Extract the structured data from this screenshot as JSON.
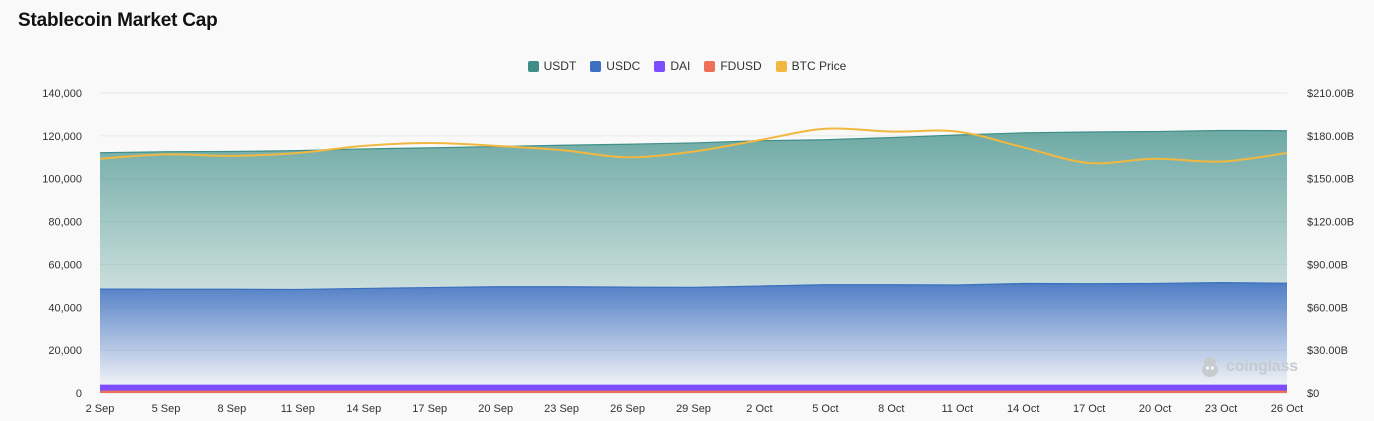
{
  "header": {
    "title": "Stablecoin Market Cap"
  },
  "watermark": {
    "text": "coinglass"
  },
  "colors": {
    "usdt": "#3f8f88",
    "usdc": "#3c6fbf",
    "dai": "#7c4dff",
    "fdusd": "#ee7058",
    "btc": "#f0b840",
    "grid": "#e8e8e8"
  },
  "chart_data": {
    "type": "area",
    "title": "Stablecoin Market Cap",
    "x": [
      "2 Sep",
      "5 Sep",
      "8 Sep",
      "11 Sep",
      "14 Sep",
      "17 Sep",
      "20 Sep",
      "23 Sep",
      "26 Sep",
      "29 Sep",
      "2 Oct",
      "5 Oct",
      "8 Oct",
      "11 Oct",
      "14 Oct",
      "17 Oct",
      "20 Oct",
      "23 Oct",
      "26 Oct"
    ],
    "y_left": {
      "ylim": [
        0,
        140000
      ],
      "ticks": [
        "0",
        "20,000",
        "40,000",
        "60,000",
        "80,000",
        "100,000",
        "120,000",
        "140,000"
      ]
    },
    "y_right": {
      "ylim": [
        0,
        210
      ],
      "ticks": [
        "$0",
        "$30.00B",
        "$60.00B",
        "$90.00B",
        "$120.00B",
        "$150.00B",
        "$180.00B",
        "$210.00B"
      ]
    },
    "stacked": true,
    "grid": true,
    "legend_position": "top-center",
    "series": [
      {
        "name": "USDT",
        "axis": "left",
        "values": [
          63600,
          64200,
          64300,
          64800,
          65100,
          65200,
          65400,
          66000,
          66700,
          67400,
          67800,
          67700,
          68700,
          70000,
          70300,
          70800,
          70900,
          71000,
          71200
        ]
      },
      {
        "name": "USDC",
        "axis": "left",
        "values": [
          44900,
          44800,
          44800,
          44700,
          45200,
          45600,
          46000,
          46000,
          45800,
          45700,
          46300,
          46900,
          46900,
          46800,
          47500,
          47400,
          47500,
          47900,
          47600
        ]
      },
      {
        "name": "DAI",
        "axis": "left",
        "values": [
          2800,
          2800,
          2800,
          2800,
          2800,
          2800,
          2800,
          2800,
          2800,
          2800,
          2800,
          2800,
          2800,
          2800,
          2800,
          2800,
          2800,
          2800,
          2800
        ]
      },
      {
        "name": "FDUSD",
        "axis": "left",
        "values": [
          800,
          800,
          800,
          800,
          800,
          800,
          800,
          800,
          800,
          800,
          800,
          800,
          800,
          800,
          800,
          800,
          800,
          800,
          800
        ]
      },
      {
        "name": "BTC Price",
        "axis": "right",
        "type": "line",
        "values": [
          164,
          167,
          166,
          168,
          173,
          175,
          173,
          170,
          165,
          169,
          177,
          185,
          183,
          183,
          172,
          161,
          164,
          162,
          168
        ]
      }
    ]
  }
}
